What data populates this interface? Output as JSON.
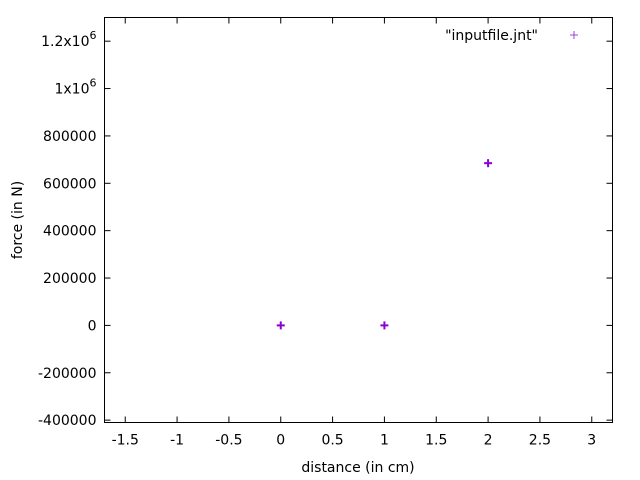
{
  "chart_data": {
    "type": "scatter",
    "title": "",
    "xlabel": "distance (in cm)",
    "ylabel": "force (in N)",
    "xlim": [
      -1.7,
      3.2
    ],
    "ylim": [
      -410000,
      1300000
    ],
    "x_ticks": [
      -1.5,
      -1,
      -0.5,
      0,
      0.5,
      1,
      1.5,
      2,
      2.5,
      3
    ],
    "x_tick_labels": [
      "-1.5",
      "-1",
      "-0.5",
      "0",
      "0.5",
      "1",
      "1.5",
      "2",
      "2.5",
      "3"
    ],
    "y_ticks": [
      -400000,
      -200000,
      0,
      200000,
      400000,
      600000,
      800000,
      1000000,
      1200000
    ],
    "y_tick_labels": [
      {
        "mantissa": "-400000",
        "exp": ""
      },
      {
        "mantissa": "-200000",
        "exp": ""
      },
      {
        "mantissa": "0",
        "exp": ""
      },
      {
        "mantissa": "200000",
        "exp": ""
      },
      {
        "mantissa": "400000",
        "exp": ""
      },
      {
        "mantissa": "600000",
        "exp": ""
      },
      {
        "mantissa": "800000",
        "exp": ""
      },
      {
        "mantissa": "1x10",
        "exp": "6"
      },
      {
        "mantissa": "1.2x10",
        "exp": "6"
      }
    ],
    "grid": false,
    "legend_position": "top-right",
    "series": [
      {
        "name": "\"inputfile.jnt\"",
        "color": "#8b00d4",
        "marker": "plus",
        "x": [
          0,
          1,
          2
        ],
        "y": [
          0,
          0,
          685000
        ]
      }
    ]
  }
}
